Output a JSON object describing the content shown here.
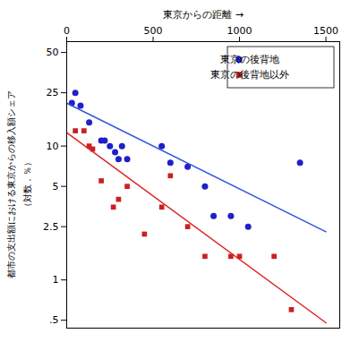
{
  "chart_data": {
    "type": "scatter",
    "xlabel": "東京からの距離",
    "ylabel": [
      "都市の支出額における東京からの移入額シェア",
      "（対数，％）"
    ],
    "log": "y",
    "grid": false,
    "legend": "upper right",
    "xlim": [
      0,
      1580
    ],
    "xticks": [
      0,
      500,
      1000,
      1500
    ],
    "ylim": [
      0.4365158322401658,
      60.25595860743578
    ],
    "yticks": [
      {
        "value": 0.5,
        "label": ".5"
      },
      1,
      2.5,
      5,
      10,
      25,
      50
    ],
    "series": [
      {
        "name": "東京の後背地",
        "type": "scatter",
        "marker": "circle",
        "color": "#1f1fcc",
        "x": [
          30,
          50,
          80,
          130,
          200,
          220,
          250,
          280,
          300,
          320,
          350,
          550,
          600,
          700,
          800,
          850,
          950,
          1050,
          1350
        ],
        "values": [
          21,
          25,
          20,
          15,
          11,
          11,
          10,
          9,
          8,
          10,
          8,
          10,
          7.5,
          7,
          5,
          3,
          3,
          2.5,
          7.5
        ]
      },
      {
        "name": "東京の後背地以外",
        "type": "scatter",
        "marker": "square",
        "color": "#cc1f1f",
        "x": [
          50,
          100,
          130,
          150,
          200,
          270,
          300,
          350,
          450,
          550,
          600,
          700,
          800,
          950,
          1000,
          1200,
          1300
        ],
        "values": [
          13,
          13,
          10,
          9.5,
          5.5,
          3.5,
          4,
          5,
          2.2,
          3.5,
          6,
          2.5,
          1.5,
          1.5,
          1.5,
          1.5,
          0.6
        ]
      },
      {
        "type": "line",
        "color": "#3355dd",
        "x": [
          0,
          1500
        ],
        "values": [
          20.892961308540396,
          2.2908676527677727
        ]
      },
      {
        "type": "line",
        "color": "#dd2222",
        "x": [
          0,
          1500
        ],
        "values": [
          12.589254117941675,
          0.4786300923226383
        ]
      }
    ]
  }
}
